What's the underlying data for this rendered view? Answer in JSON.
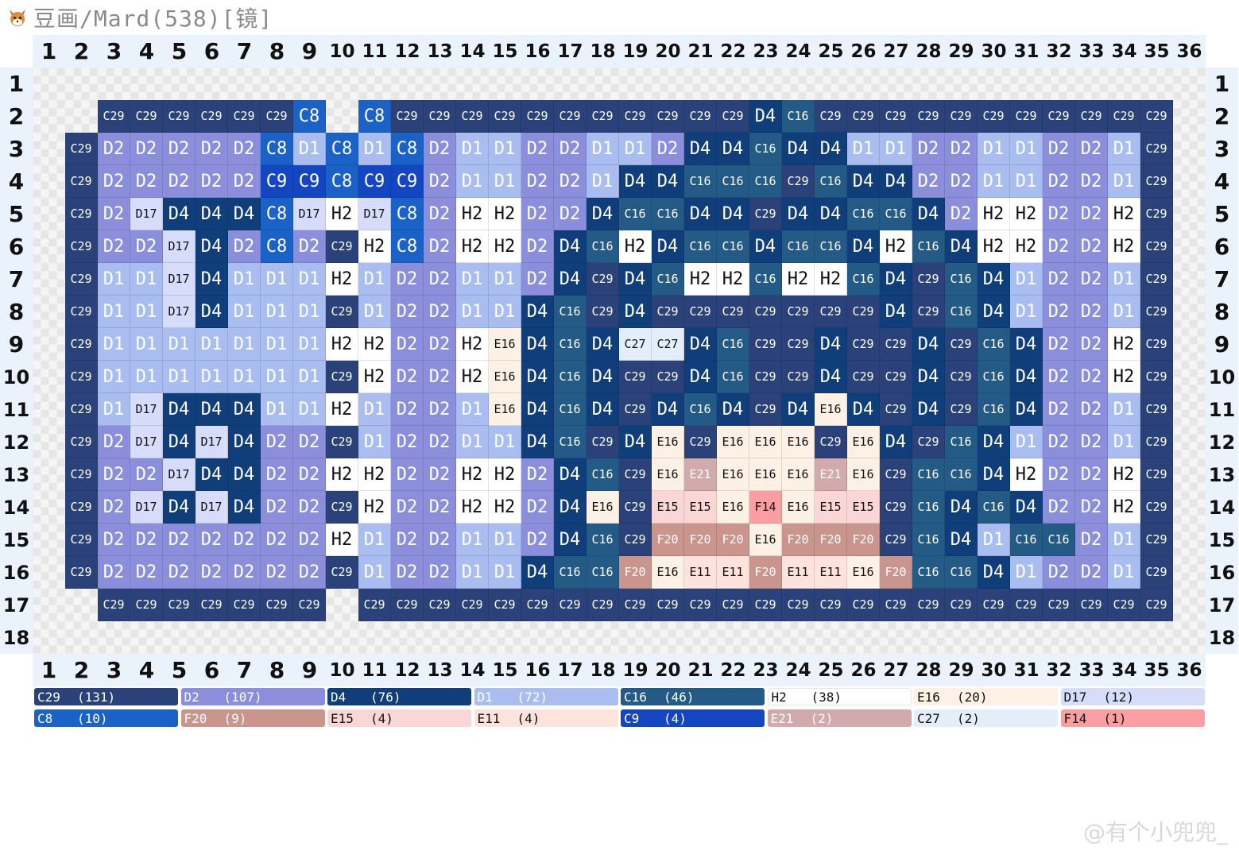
{
  "title": "豆画/Mard(538)[镜]",
  "watermark": "@有个小兜兜_",
  "grid": {
    "cols": 36,
    "rows": 18,
    "colors": {
      "C29": "#2a4179",
      "D2": "#8b8fdb",
      "D4": "#0f3e7a",
      "D1": "#a9bdf1",
      "C16": "#245a86",
      "H2": "#ffffff",
      "E16": "#fdf1e6",
      "D17": "#d6dcfa",
      "C8": "#1a61c8",
      "F20": "#c9958d",
      "E15": "#fbd6d6",
      "E11": "#fde3dc",
      "C9": "#1546c2",
      "E21": "#d2aaab",
      "C27": "#e3eefa",
      "F14": "#fa9ea2"
    },
    "text_colors": {
      "C29": "#ffffff",
      "D2": "#ffffff",
      "D4": "#ffffff",
      "D1": "#ffffff",
      "C16": "#ffffff",
      "H2": "#111111",
      "E16": "#111111",
      "D17": "#111111",
      "C8": "#ffffff",
      "F20": "#ffffff",
      "E15": "#111111",
      "E11": "#111111",
      "C9": "#ffffff",
      "E21": "#ffffff",
      "C27": "#111111",
      "F14": "#111111"
    },
    "cells": [
      "- - - - - - - - - - - - - - - - - - - - - - - - - - - - - - - - - - - -",
      "- - C29 C29 C29 C29 C29 C29 C8 - C8 C29 C29 C29 C29 C29 C29 C29 C29 C29 C29 C29 D4 C16 C29 C29 C29 C29 C29 C29 C29 C29 C29 C29 C29 -",
      "- C29 D2 D2 D2 D2 D2 C8 D1 C8 D1 C8 D2 D1 D1 D2 D2 D1 D1 D2 D4 D4 C16 D4 D4 D1 D1 D2 D2 D1 D1 D2 D2 D1 C29 -",
      "- C29 D2 D2 D2 D2 D2 C9 C9 C8 C9 C9 D2 D1 D1 D2 D2 D1 D4 D4 C16 C16 C16 C29 C16 D4 D4 D2 D2 D1 D1 D2 D2 D1 C29 -",
      "- C29 D2 D17 D4 D4 D4 C8 D17 H2 D17 C8 D2 H2 H2 D2 D2 D4 C16 C16 D4 D4 C29 D4 D4 C16 C16 D4 D2 H2 H2 D2 D2 H2 C29 -",
      "- C29 D2 D2 D17 D4 D2 C8 D2 C29 H2 C8 D2 H2 H2 D2 D4 C16 H2 D4 C16 C16 D4 C16 C16 D4 H2 C16 D4 H2 H2 D2 D2 H2 C29 -",
      "- C29 D1 D1 D17 D4 D1 D1 D1 H2 D1 D2 D2 D1 D1 D2 D4 C29 D4 C16 H2 H2 C16 H2 H2 C16 D4 C29 C16 D4 D1 D2 D2 D1 C29 -",
      "- C29 D1 D1 D17 D4 D1 D1 D1 C29 D1 D2 D2 D1 D1 D4 C16 C29 D4 C29 C29 C29 C29 C29 C29 C29 D4 C29 C16 D4 D1 D2 D2 D1 C29 -",
      "- C29 D1 D1 D1 D1 D1 D1 D1 H2 H2 D2 D2 H2 E16 D4 C16 D4 C27 C27 D4 C16 C29 C29 D4 C29 C29 D4 C29 C16 D4 D2 D2 H2 C29 -",
      "- C29 D1 D1 D1 D1 D1 D1 D1 C29 H2 D2 D2 H2 E16 D4 C16 D4 C29 C29 D4 C16 C29 C29 D4 C29 C29 D4 C29 C16 D4 D2 D2 H2 C29 -",
      "- C29 D1 D17 D4 D4 D4 D1 D1 H2 D1 D2 D2 D1 E16 D4 C16 D4 C29 D4 C16 D4 C29 D4 E16 D4 C29 D4 C29 C16 D4 D2 D2 D1 C29 -",
      "- C29 D2 D17 D4 D17 D4 D2 D2 C29 D1 D2 D2 D1 D1 D4 C16 C29 D4 E16 C29 E16 E16 E16 C29 E16 D4 C29 C16 D4 D1 D2 D2 D1 C29 -",
      "- C29 D2 D2 D17 D4 D4 D2 D2 H2 H2 D2 D2 H2 H2 D2 D4 C16 C29 E16 E21 E16 E16 E16 E21 E16 C29 C16 C16 D4 H2 D2 D2 H2 C29 -",
      "- C29 D2 D17 D4 D17 D4 D2 D2 C29 H2 D2 D2 H2 H2 D2 D4 E16 C29 E15 E15 E16 F14 E16 E15 E15 C29 C16 D4 C16 D4 D2 D2 H2 C29 -",
      "- C29 D2 D2 D2 D2 D2 D2 D2 H2 D1 D2 D2 D1 D1 D2 D4 C16 C29 F20 F20 F20 E16 F20 F20 F20 C29 C16 D4 D1 C16 C16 D2 D1 C29 -",
      "- C29 D2 D2 D2 D2 D2 D2 D2 C29 D1 D2 D2 D1 D1 D4 C16 C16 F20 E16 E11 E11 F20 E11 E11 E16 F20 C16 C16 D4 D1 D2 D2 D1 C29 -",
      "- - C29 C29 C29 C29 C29 C29 C29 - C29 C29 C29 C29 C29 C29 C29 C29 C29 C29 C29 C29 C29 C29 C29 C29 C29 C29 C29 C29 C29 C29 C29 C29 C29 -",
      "- - - - - - - - - - - - - - - - - - - - - - - - - - - - - - - - - - - -"
    ]
  },
  "legend": [
    {
      "code": "C29",
      "count": "(131)",
      "color": "#2a4179",
      "text": "#ffffff"
    },
    {
      "code": "D2",
      "count": "(107)",
      "color": "#8b8fdb",
      "text": "#ffffff"
    },
    {
      "code": "D4",
      "count": "(76)",
      "color": "#0f3e7a",
      "text": "#ffffff"
    },
    {
      "code": "D1",
      "count": "(72)",
      "color": "#a9bdf1",
      "text": "#ffffff"
    },
    {
      "code": "C16",
      "count": "(46)",
      "color": "#245a86",
      "text": "#ffffff"
    },
    {
      "code": "H2",
      "count": "(38)",
      "color": "#ffffff",
      "text": "#111111"
    },
    {
      "code": "E16",
      "count": "(20)",
      "color": "#fdf1e6",
      "text": "#111111"
    },
    {
      "code": "D17",
      "count": "(12)",
      "color": "#d6dcfa",
      "text": "#111111"
    },
    {
      "code": "C8",
      "count": "(10)",
      "color": "#1a61c8",
      "text": "#ffffff"
    },
    {
      "code": "F20",
      "count": "(9)",
      "color": "#c9958d",
      "text": "#ffffff"
    },
    {
      "code": "E15",
      "count": "(4)",
      "color": "#fbd6d6",
      "text": "#111111"
    },
    {
      "code": "E11",
      "count": "(4)",
      "color": "#fde3dc",
      "text": "#111111"
    },
    {
      "code": "C9",
      "count": "(4)",
      "color": "#1546c2",
      "text": "#ffffff"
    },
    {
      "code": "E21",
      "count": "(2)",
      "color": "#d2aaab",
      "text": "#ffffff"
    },
    {
      "code": "C27",
      "count": "(2)",
      "color": "#e3eefa",
      "text": "#111111"
    },
    {
      "code": "F14",
      "count": "(1)",
      "color": "#fa9ea2",
      "text": "#111111"
    }
  ]
}
